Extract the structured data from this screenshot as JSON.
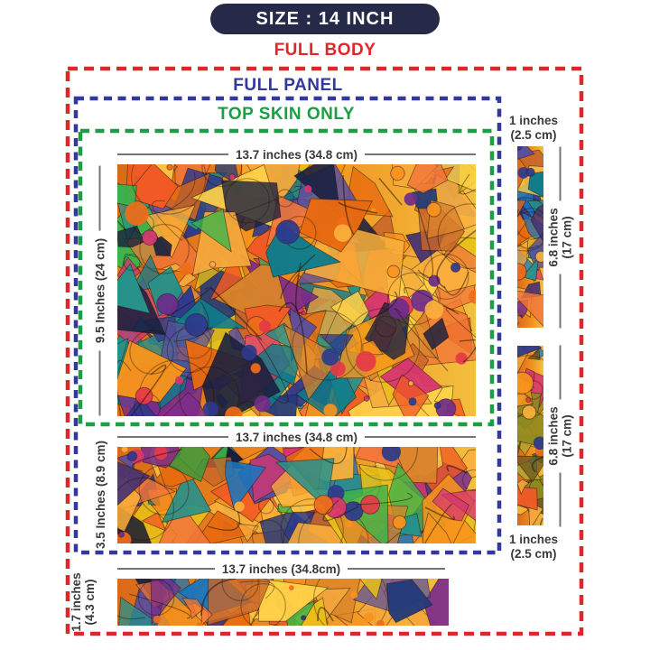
{
  "banner": {
    "label": "SIZE : 14 INCH"
  },
  "zones": {
    "full_body": {
      "label": "FULL BODY",
      "color": "#e0252b"
    },
    "full_panel": {
      "label": "FULL PANEL",
      "color": "#33389b"
    },
    "top_skin": {
      "label": "TOP SKIN ONLY",
      "color": "#1b9e44"
    }
  },
  "colors": {
    "banner_bg": "#262a49",
    "banner_text": "#ffffff",
    "dimension_text": "#3a3a3a",
    "dimension_line": "#757575"
  },
  "pieces": {
    "top_skin": {
      "width_label": "13.7 inches (34.8 cm)",
      "height_label": "9.5 Inches (24 cm)"
    },
    "middle_panel": {
      "width_label": "13.7 inches (34.8 cm)",
      "height_label": "3.5 Inches (8.9 cm)"
    },
    "bottom_strip": {
      "width_label": "13.7 inches (34.8cm)",
      "height_label_line1": "1.7 inches",
      "height_label_line2": "(4.3 cm)"
    },
    "side_strip_top": {
      "width_label_line1": "1 inches",
      "width_label_line2": "(2.5 cm)",
      "height_label_line1": "6.8 inches",
      "height_label_line2": "(17 cm)"
    },
    "side_strip_bottom": {
      "width_label_line1": "1 inches",
      "width_label_line2": "(2.5 cm)",
      "height_label_line1": "6.8 inches",
      "height_label_line2": "(17 cm)"
    }
  },
  "artwork_palette": {
    "bg": [
      "#d96a1a",
      "#ef8c1e",
      "#f3bf3e"
    ],
    "warm": [
      "#f7941d",
      "#f15a24",
      "#fbb03b",
      "#ffd24a",
      "#e8c019",
      "#e86a10",
      "#f2763a",
      "#d9822b",
      "#c9662a",
      "#f4a83c"
    ],
    "cool": [
      "#2d3a8c",
      "#443072",
      "#7b2d8b",
      "#1b75bb",
      "#0e7c8c",
      "#27918a",
      "#39b54a",
      "#d6356f",
      "#243b7a",
      "#19203f",
      "#5a4f9e"
    ],
    "dots": [
      "#f7941d",
      "#fbb03b",
      "#6e2d8b",
      "#d6356f",
      "#e63946",
      "#2d3a8c",
      "#ef6c1a"
    ]
  }
}
